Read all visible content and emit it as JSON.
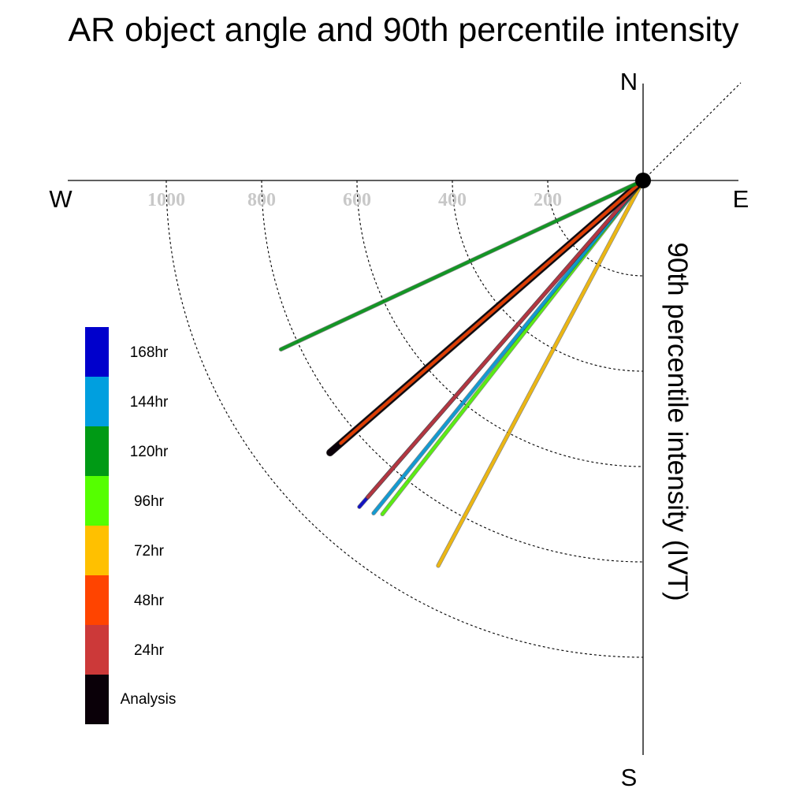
{
  "chart_data": {
    "type": "radial-vector",
    "title": "AR object angle and 90th percentile intensity",
    "ylabel": "90th percentile intensity (IVT)",
    "directions": {
      "north": "N",
      "south": "S",
      "east": "E",
      "west": "W"
    },
    "radial_ticks": [
      200,
      400,
      600,
      800,
      1000
    ],
    "radial_tick_labels": [
      "200",
      "400",
      "600",
      "800",
      "1000"
    ],
    "rlim": [
      0,
      1200
    ],
    "grid": true,
    "legend_position": "left",
    "series": [
      {
        "name": "72hr",
        "color": "#ffc000",
        "angle_deg": 208,
        "intensity": 915
      },
      {
        "name": "96hr",
        "color": "#55ff00",
        "angle_deg": 218,
        "intensity": 888
      },
      {
        "name": "144hr",
        "color": "#009fdf",
        "angle_deg": 219,
        "intensity": 898
      },
      {
        "name": "168hr",
        "color": "#0000cc",
        "angle_deg": 221,
        "intensity": 907
      },
      {
        "name": "24hr",
        "color": "#cc3939",
        "angle_deg": 221,
        "intensity": 880
      },
      {
        "name": "Analysis",
        "color": "#0a0008",
        "angle_deg": 229,
        "intensity": 870
      },
      {
        "name": "48hr",
        "color": "#ff4400",
        "angle_deg": 229,
        "intensity": 840
      },
      {
        "name": "120hr",
        "color": "#009a15",
        "angle_deg": 245,
        "intensity": 838
      }
    ],
    "legend": [
      {
        "label": "168hr",
        "color": "#0000cc"
      },
      {
        "label": "144hr",
        "color": "#009fdf"
      },
      {
        "label": "120hr",
        "color": "#009a15"
      },
      {
        "label": "96hr",
        "color": "#55ff00"
      },
      {
        "label": "72hr",
        "color": "#ffc000"
      },
      {
        "label": "48hr",
        "color": "#ff4400"
      },
      {
        "label": "24hr",
        "color": "#cc3939"
      },
      {
        "label": "Analysis",
        "color": "#0a0008"
      }
    ]
  }
}
